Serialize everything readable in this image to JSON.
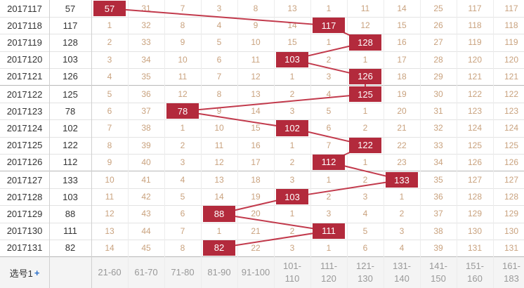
{
  "table": {
    "columns": [
      "21-60",
      "61-70",
      "71-80",
      "81-90",
      "91-100",
      "101-110",
      "111-120",
      "121-130",
      "131-140",
      "141-150",
      "151-160",
      "161-183"
    ],
    "footer_label": "选号1",
    "footer_icon": "+",
    "rows": [
      {
        "period": "2017117",
        "value": 57,
        "cells": [
          57,
          31,
          7,
          3,
          8,
          13,
          1,
          11,
          14,
          25,
          117,
          117
        ]
      },
      {
        "period": "2017118",
        "value": 117,
        "cells": [
          1,
          32,
          8,
          4,
          9,
          14,
          117,
          12,
          15,
          26,
          118,
          118
        ]
      },
      {
        "period": "2017119",
        "value": 128,
        "cells": [
          2,
          33,
          9,
          5,
          10,
          15,
          1,
          128,
          16,
          27,
          119,
          119
        ]
      },
      {
        "period": "2017120",
        "value": 103,
        "cells": [
          3,
          34,
          10,
          6,
          11,
          103,
          2,
          1,
          17,
          28,
          120,
          120
        ]
      },
      {
        "period": "2017121",
        "value": 126,
        "cells": [
          4,
          35,
          11,
          7,
          12,
          1,
          3,
          126,
          18,
          29,
          121,
          121
        ]
      },
      {
        "period": "2017122",
        "value": 125,
        "cells": [
          5,
          36,
          12,
          8,
          13,
          2,
          4,
          125,
          19,
          30,
          122,
          122
        ]
      },
      {
        "period": "2017123",
        "value": 78,
        "cells": [
          6,
          37,
          78,
          9,
          14,
          3,
          5,
          1,
          20,
          31,
          123,
          123
        ]
      },
      {
        "period": "2017124",
        "value": 102,
        "cells": [
          7,
          38,
          1,
          10,
          15,
          102,
          6,
          2,
          21,
          32,
          124,
          124
        ]
      },
      {
        "period": "2017125",
        "value": 122,
        "cells": [
          8,
          39,
          2,
          11,
          16,
          1,
          7,
          122,
          22,
          33,
          125,
          125
        ]
      },
      {
        "period": "2017126",
        "value": 112,
        "cells": [
          9,
          40,
          3,
          12,
          17,
          2,
          112,
          1,
          23,
          34,
          126,
          126
        ]
      },
      {
        "period": "2017127",
        "value": 133,
        "cells": [
          10,
          41,
          4,
          13,
          18,
          3,
          1,
          2,
          133,
          35,
          127,
          127
        ]
      },
      {
        "period": "2017128",
        "value": 103,
        "cells": [
          11,
          42,
          5,
          14,
          19,
          103,
          2,
          3,
          1,
          36,
          128,
          128
        ]
      },
      {
        "period": "2017129",
        "value": 88,
        "cells": [
          12,
          43,
          6,
          88,
          20,
          1,
          3,
          4,
          2,
          37,
          129,
          129
        ]
      },
      {
        "period": "2017130",
        "value": 111,
        "cells": [
          13,
          44,
          7,
          1,
          21,
          2,
          111,
          5,
          3,
          38,
          130,
          130
        ]
      },
      {
        "period": "2017131",
        "value": 82,
        "cells": [
          14,
          45,
          8,
          82,
          22,
          3,
          1,
          6,
          4,
          39,
          131,
          131
        ]
      }
    ]
  }
}
